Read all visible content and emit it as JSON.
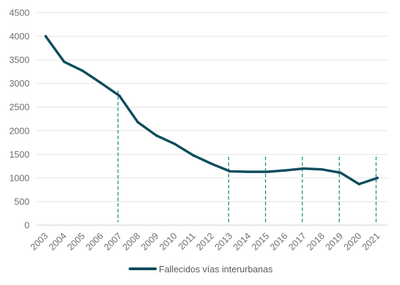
{
  "chart_data": {
    "type": "line",
    "title": "",
    "xlabel": "",
    "ylabel": "",
    "categories": [
      "2003",
      "2004",
      "2005",
      "2006",
      "2007",
      "2008",
      "2009",
      "2010",
      "2011",
      "2012",
      "2013",
      "2014",
      "2015",
      "2016",
      "2017",
      "2018",
      "2019",
      "2020",
      "2021"
    ],
    "series": [
      {
        "name": "Fallecidos vías interurbanas",
        "color": "#0f4c5c",
        "values": [
          4000,
          3460,
          3270,
          3010,
          2740,
          2180,
          1900,
          1720,
          1480,
          1300,
          1140,
          1130,
          1130,
          1160,
          1200,
          1180,
          1110,
          870,
          1000
        ]
      }
    ],
    "markers": {
      "style": "dashed vertical lines",
      "color": "#1a8f80",
      "years": [
        "2007",
        "2013",
        "2015",
        "2017",
        "2019",
        "2021"
      ],
      "top_values": [
        2850,
        1450,
        1450,
        1450,
        1450,
        1450
      ]
    },
    "ylim": [
      0,
      4500
    ],
    "yticks": [
      0,
      500,
      1000,
      1500,
      2000,
      2500,
      3000,
      3500,
      4000,
      4500
    ],
    "grid": true,
    "legend_position": "bottom"
  }
}
